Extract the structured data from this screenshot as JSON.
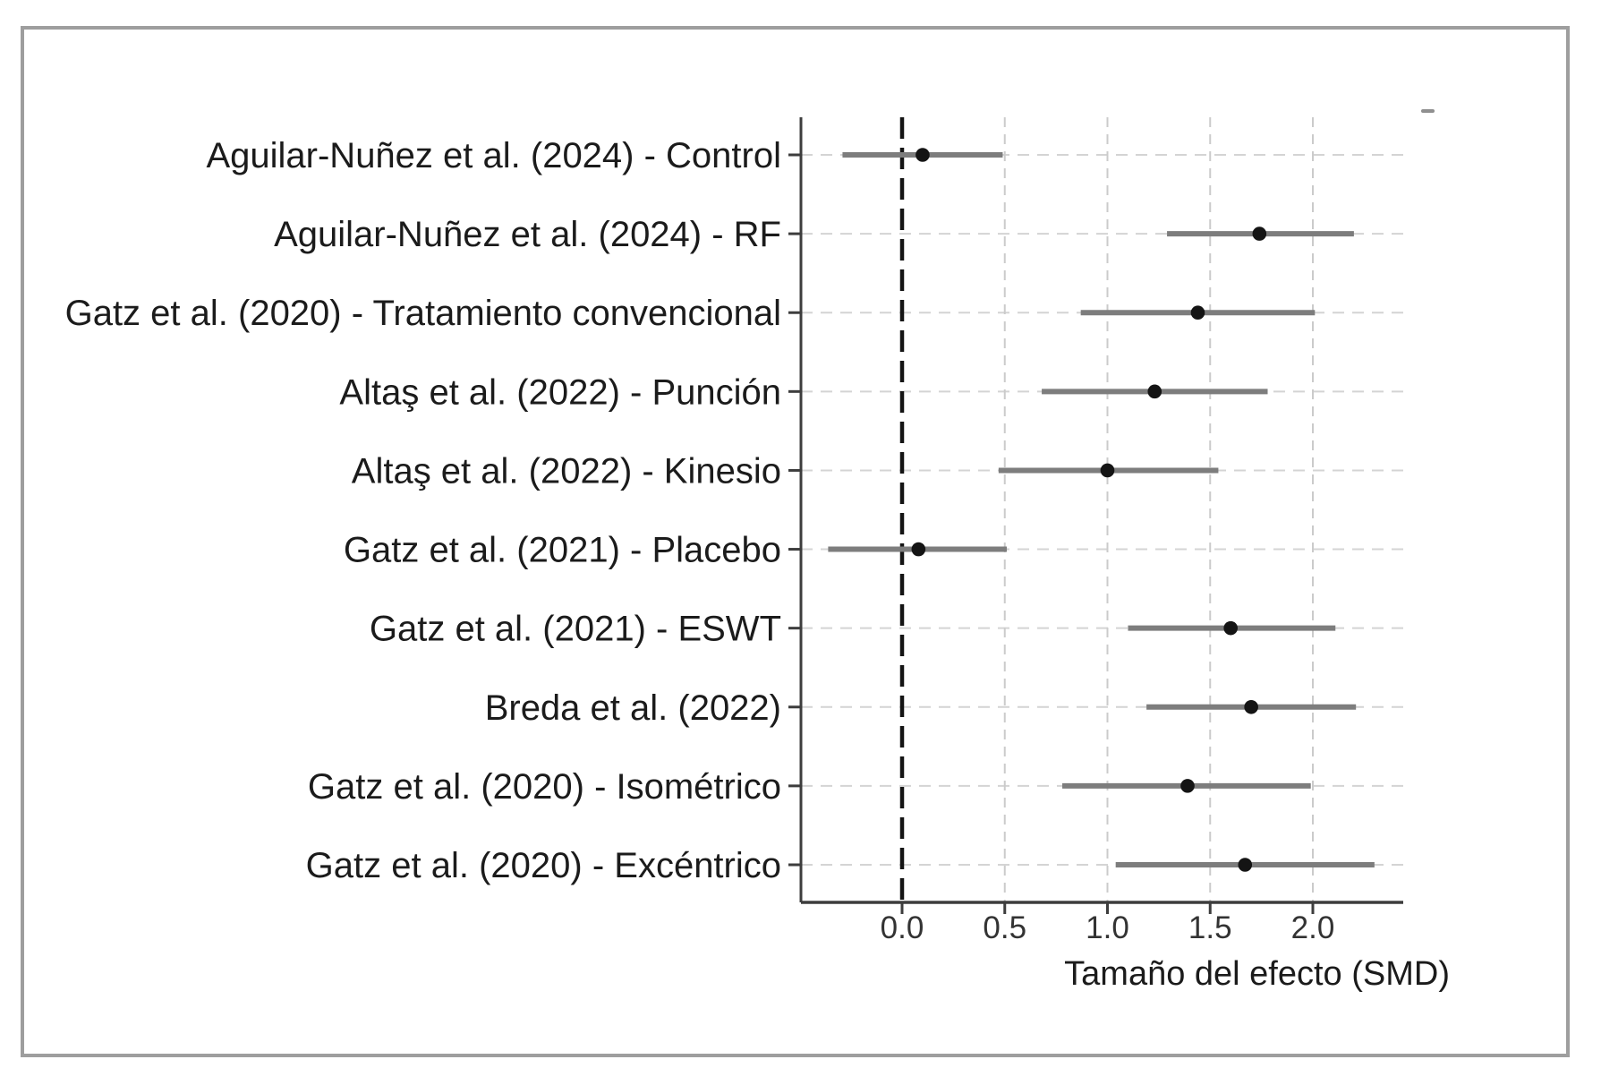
{
  "figure": {
    "border_color": "#9e9e9e",
    "background": "#ffffff"
  },
  "chart_data": {
    "type": "scatter",
    "variant": "forest-plot",
    "title": "",
    "xlabel": "Tamaño del efecto (SMD)",
    "ylabel": "",
    "xlim": [
      -0.49,
      2.44
    ],
    "xticks": [
      0.0,
      0.5,
      1.0,
      1.5,
      2.0
    ],
    "xtick_labels": [
      "0.0",
      "0.5",
      "1.0",
      "1.5",
      "2.0"
    ],
    "reference_line_x": 0.0,
    "grid": "dashed vertical lines at x ticks + dashed horizontal guide per row",
    "legend": "none",
    "studies": [
      {
        "label": "Aguilar-Nuñez et al. (2024) - Control",
        "smd": 0.1,
        "ci_low": -0.29,
        "ci_high": 0.49
      },
      {
        "label": "Aguilar-Nuñez et al. (2024) - RF",
        "smd": 1.74,
        "ci_low": 1.29,
        "ci_high": 2.2
      },
      {
        "label": "Gatz et al. (2020) - Tratamiento convencional",
        "smd": 1.44,
        "ci_low": 0.87,
        "ci_high": 2.01
      },
      {
        "label": "Altaş et al. (2022) - Punción",
        "smd": 1.23,
        "ci_low": 0.68,
        "ci_high": 1.78
      },
      {
        "label": "Altaş et al. (2022) - Kinesio",
        "smd": 1.0,
        "ci_low": 0.47,
        "ci_high": 1.54
      },
      {
        "label": "Gatz et al. (2021) - Placebo",
        "smd": 0.08,
        "ci_low": -0.36,
        "ci_high": 0.51
      },
      {
        "label": "Gatz et al. (2021) - ESWT",
        "smd": 1.6,
        "ci_low": 1.1,
        "ci_high": 2.11
      },
      {
        "label": "Breda et al. (2022)",
        "smd": 1.7,
        "ci_low": 1.19,
        "ci_high": 2.21
      },
      {
        "label": "Gatz et al. (2020) - Isométrico",
        "smd": 1.39,
        "ci_low": 0.78,
        "ci_high": 1.99
      },
      {
        "label": "Gatz et al. (2020) - Excéntrico",
        "smd": 1.67,
        "ci_low": 1.04,
        "ci_high": 2.3
      }
    ],
    "colors": {
      "point": "#141414",
      "ci_line": "#7d7d7d",
      "zero_line": "#141414",
      "grid_line": "#cbcbcb",
      "row_guide": "#d4d4d4",
      "spine": "#3d3d3d",
      "tick_label": "#333333",
      "study_label": "#1b1b1b",
      "axis_label": "#1b1b1b"
    }
  }
}
